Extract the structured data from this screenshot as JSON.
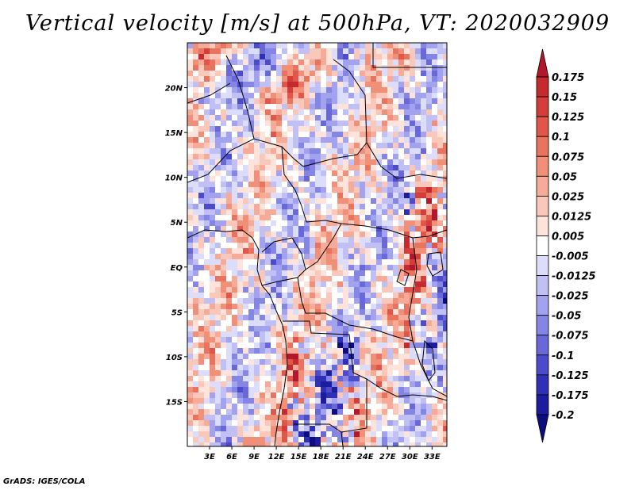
{
  "title": "Vertical velocity [m/s] at 500hPa, VT: 2020032909",
  "credit": "GrADS: IGES/COLA",
  "map": {
    "lat_labels": [
      "20N",
      "15N",
      "10N",
      "5N",
      "EQ",
      "5S",
      "10S",
      "15S"
    ],
    "lat_values": [
      20,
      15,
      10,
      5,
      0,
      -5,
      -10,
      -15
    ],
    "lon_labels": [
      "3E",
      "6E",
      "9E",
      "12E",
      "15E",
      "18E",
      "21E",
      "24E",
      "27E",
      "30E",
      "33E"
    ],
    "lon_values": [
      3,
      6,
      9,
      12,
      15,
      18,
      21,
      24,
      27,
      30,
      33
    ],
    "lat_range": [
      -20,
      25
    ],
    "lon_range": [
      0,
      35
    ]
  },
  "colorbar": {
    "labels": [
      "0.175",
      "0.15",
      "0.125",
      "0.1",
      "0.075",
      "0.05",
      "0.025",
      "0.0125",
      "0.005",
      "-0.005",
      "-0.0125",
      "-0.025",
      "-0.05",
      "-0.075",
      "-0.1",
      "-0.125",
      "-0.175",
      "-0.2"
    ],
    "colors": [
      "#b2182b",
      "#c42a2e",
      "#d33d3a",
      "#e0564a",
      "#e8735f",
      "#f09079",
      "#f5ab97",
      "#f9c8ba",
      "#fde3da",
      "#ffffff",
      "#dcdcfb",
      "#c0c0f5",
      "#a2a2ee",
      "#8585e4",
      "#6868d8",
      "#4c4cca",
      "#3030b6",
      "#1c1c9c",
      "#0d0d80"
    ]
  }
}
